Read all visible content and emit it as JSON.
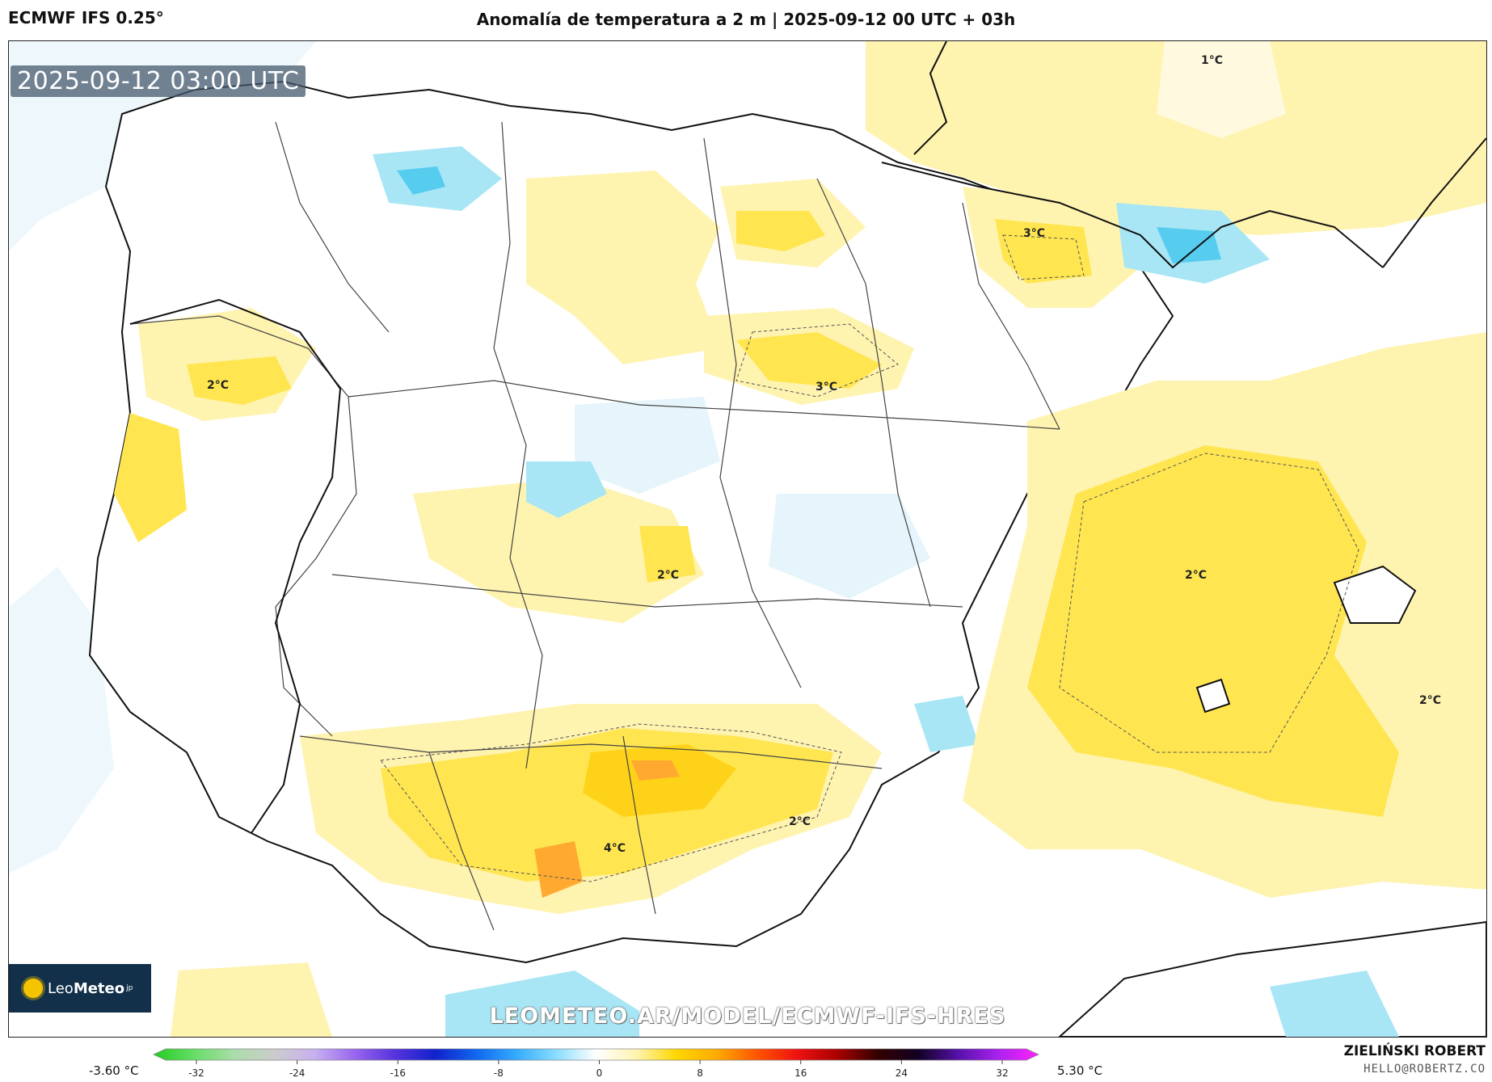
{
  "header": {
    "model": "ECMWF IFS 0.25°",
    "title": "Anomalía de temperatura a 2 m | 2025-09-12 00 UTC + 03h"
  },
  "map": {
    "valid_time": "2025-09-12 03:00 UTC",
    "watermark": "LEOMETEO.AR/MODEL/ECMWF-IFS-HRES",
    "logo": {
      "name_light": "Leo",
      "name_bold": "Meteo",
      "suffix": "jp"
    },
    "contour_labels": [
      "1°C",
      "3°C",
      "2°C",
      "3°C",
      "2°C",
      "2°C",
      "2°C",
      "2°C",
      "4°C"
    ],
    "colors": {
      "sea": "#ffffff",
      "anomaly_1": "#fff3b0",
      "anomaly_2": "#ffe650",
      "anomaly_3": "#ffd21a",
      "anomaly_4": "#ffa930",
      "cool_1": "#e6f4fb",
      "cool_2": "#a8e6f5",
      "cool_3": "#56ccee"
    }
  },
  "colorbar": {
    "min_label": "-3.60 °C",
    "max_label": "5.30 °C",
    "ticks": [
      "-32",
      "-24",
      "-16",
      "-8",
      "0",
      "8",
      "16",
      "24",
      "32"
    ],
    "stops": [
      "#22cc22",
      "#66dd66",
      "#aaddaa",
      "#cccccc",
      "#c8b0f0",
      "#9966ee",
      "#5533dd",
      "#1122cc",
      "#1166ee",
      "#33aaff",
      "#88ddff",
      "#ffffff",
      "#fff3b0",
      "#ffd700",
      "#ffaa00",
      "#ff5500",
      "#ee1111",
      "#aa0000",
      "#330000",
      "#110022",
      "#5511aa",
      "#aa22ee",
      "#ff22ff"
    ]
  },
  "credits": {
    "author": "ZIELIŃSKI ROBERT",
    "email": "HELLO@ROBERTZ.CO"
  }
}
